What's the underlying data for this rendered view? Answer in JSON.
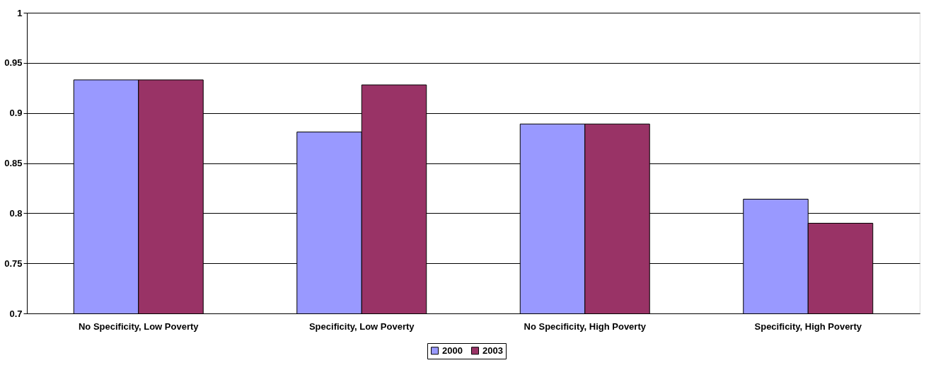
{
  "chart_data": {
    "type": "bar",
    "categories": [
      "No Specificity, Low Poverty",
      "Specificity, Low Poverty",
      "No Specificity, High Poverty",
      "Specificity, High Poverty"
    ],
    "series": [
      {
        "name": "2000",
        "color": "#9999ff",
        "values": [
          0.933,
          0.881,
          0.889,
          0.814
        ]
      },
      {
        "name": "2003",
        "color": "#993366",
        "values": [
          0.933,
          0.928,
          0.889,
          0.79
        ]
      }
    ],
    "ylim": [
      0.7,
      1
    ],
    "yticks": [
      0.7,
      0.75,
      0.8,
      0.85,
      0.9,
      0.95,
      1
    ],
    "grid": "y",
    "legend": "bottom"
  }
}
